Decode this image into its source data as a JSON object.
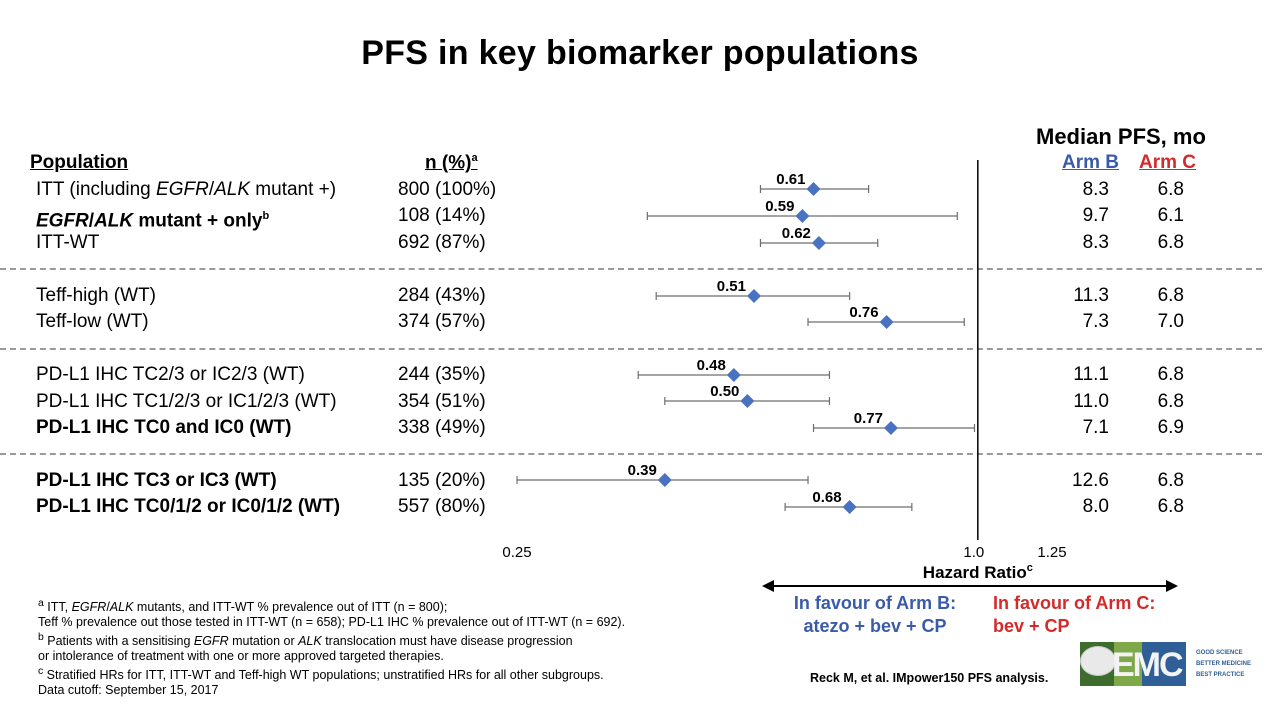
{
  "title": "PFS in key biomarker populations",
  "headers": {
    "population": "Population",
    "n": "n (%)",
    "n_sup": "a",
    "median": "Median PFS, mo",
    "arm_b": "Arm B",
    "arm_c": "Arm C"
  },
  "rows": [
    {
      "pop_a": "ITT (including ",
      "pop_b": "EGFR",
      "pop_c": "/",
      "pop_d": "ALK",
      "pop_e": " mutant +)",
      "n": "800 (100%)",
      "hr_label": "0.61",
      "b": "8.3",
      "c": "6.8"
    },
    {
      "pop_a": "EGFR",
      "pop_b": "/",
      "pop_c": "ALK",
      "pop_d": " mutant + only",
      "pop_sup": "b",
      "n": "108 (14%)",
      "hr_label": "0.59",
      "b": "9.7",
      "c": "6.1"
    },
    {
      "pop": "ITT-WT",
      "n": "692 (87%)",
      "hr_label": "0.62",
      "b": "8.3",
      "c": "6.8"
    },
    {
      "pop": "Teff-high (WT)",
      "n": "284 (43%)",
      "hr_label": "0.51",
      "b": "11.3",
      "c": "6.8"
    },
    {
      "pop": "Teff-low (WT)",
      "n": "374 (57%)",
      "hr_label": "0.76",
      "b": "7.3",
      "c": "7.0"
    },
    {
      "pop": "PD-L1 IHC TC2/3 or IC2/3 (WT)",
      "n": "244 (35%)",
      "hr_label": "0.48",
      "b": "11.1",
      "c": "6.8"
    },
    {
      "pop": "PD-L1 IHC TC1/2/3 or IC1/2/3 (WT)",
      "n": "354 (51%)",
      "hr_label": "0.50",
      "b": "11.0",
      "c": "6.8"
    },
    {
      "pop": "PD-L1 IHC TC0 and IC0 (WT)",
      "n": "338 (49%)",
      "hr_label": "0.77",
      "b": "7.1",
      "c": "6.9"
    },
    {
      "pop": "PD-L1 IHC TC3 or IC3 (WT)",
      "n": "135 (20%)",
      "hr_label": "0.39",
      "b": "12.6",
      "c": "6.8"
    },
    {
      "pop": "PD-L1 IHC TC0/1/2 or IC0/1/2 (WT)",
      "n": "557 (80%)",
      "hr_label": "0.68",
      "b": "8.0",
      "c": "6.8"
    }
  ],
  "chart_data": {
    "type": "forest",
    "scale": "log",
    "xlabel": "Hazard Ratio",
    "xlabel_sup": "c",
    "xlim": [
      0.25,
      1.25
    ],
    "ticks": [
      0.25,
      1.0,
      1.25
    ],
    "tick_labels": [
      "0.25",
      "1.0",
      "1.25"
    ],
    "reference_line": 1.0,
    "marker_color": "#4a72c2",
    "points": [
      {
        "label": "ITT (including EGFR/ALK mutant +)",
        "hr": 0.61,
        "ci_low": 0.52,
        "ci_high": 0.72
      },
      {
        "label": "EGFR/ALK mutant + only",
        "hr": 0.59,
        "ci_low": 0.37,
        "ci_high": 0.94
      },
      {
        "label": "ITT-WT",
        "hr": 0.62,
        "ci_low": 0.52,
        "ci_high": 0.74
      },
      {
        "label": "Teff-high (WT)",
        "hr": 0.51,
        "ci_low": 0.38,
        "ci_high": 0.68
      },
      {
        "label": "Teff-low (WT)",
        "hr": 0.76,
        "ci_low": 0.6,
        "ci_high": 0.96
      },
      {
        "label": "PD-L1 IHC TC2/3 or IC2/3 (WT)",
        "hr": 0.48,
        "ci_low": 0.36,
        "ci_high": 0.64
      },
      {
        "label": "PD-L1 IHC TC1/2/3 or IC1/2/3 (WT)",
        "hr": 0.5,
        "ci_low": 0.39,
        "ci_high": 0.64
      },
      {
        "label": "PD-L1 IHC TC0 and IC0 (WT)",
        "hr": 0.77,
        "ci_low": 0.61,
        "ci_high": 0.99
      },
      {
        "label": "PD-L1 IHC TC3 or IC3 (WT)",
        "hr": 0.39,
        "ci_low": 0.25,
        "ci_high": 0.6
      },
      {
        "label": "PD-L1 IHC TC0/1/2 or IC0/1/2 (WT)",
        "hr": 0.68,
        "ci_low": 0.56,
        "ci_high": 0.82
      }
    ]
  },
  "favour_b": {
    "line1": "In favour of Arm B:",
    "line2": "atezo + bev + CP"
  },
  "favour_c": {
    "line1": "In favour of Arm C:",
    "line2": "bev + CP"
  },
  "footnotes": {
    "fa_sup": "a",
    "fa_1": " ITT, ",
    "fa_2": "EGFR",
    "fa_3": "/",
    "fa_4": "ALK",
    "fa_5": " mutants, and ITT-WT % prevalence out of ITT (n = 800);",
    "fa_line2": "Teff % prevalence out those tested in ITT-WT (n = 658); PD-L1 IHC % prevalence out of ITT-WT (n = 692).",
    "fb_sup": "b",
    "fb_1": " Patients with a sensitising ",
    "fb_2": "EGFR",
    "fb_3": " mutation or ",
    "fb_4": "ALK",
    "fb_5": " translocation must have disease progression",
    "fb_line2": "or intolerance of treatment with one or more approved targeted therapies.",
    "fc_sup": "c",
    "fc_1": " Stratified HRs for ITT, ITT-WT and Teff-high WT populations; unstratified HRs for all other subgroups.",
    "cutoff": "Data cutoff: September 15, 2017"
  },
  "citation": "Reck M, et al. IMpower150 PFS analysis.",
  "logo": {
    "text": "EMC",
    "tag1": "GOOD SCIENCE",
    "tag2": "BETTER MEDICINE",
    "tag3": "BEST PRACTICE"
  }
}
